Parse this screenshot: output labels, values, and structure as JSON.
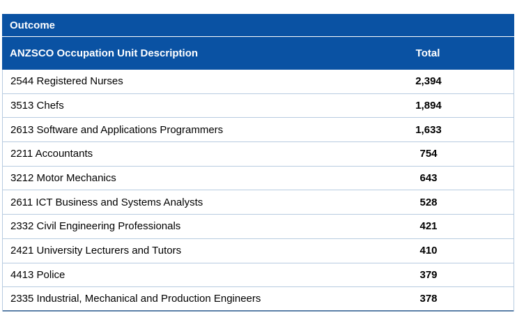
{
  "table": {
    "section_title": "Outcome",
    "columns": {
      "description": "ANZSCO Occupation Unit Description",
      "total": "Total"
    },
    "rows": [
      {
        "description": "2544 Registered Nurses",
        "total": "2,394"
      },
      {
        "description": "3513 Chefs",
        "total": "1,894"
      },
      {
        "description": "2613 Software and Applications Programmers",
        "total": "1,633"
      },
      {
        "description": "2211 Accountants",
        "total": "754"
      },
      {
        "description": "3212 Motor Mechanics",
        "total": "643"
      },
      {
        "description": "2611 ICT Business and Systems Analysts",
        "total": "528"
      },
      {
        "description": "2332 Civil Engineering Professionals",
        "total": "421"
      },
      {
        "description": "2421 University Lecturers and Tutors",
        "total": "410"
      },
      {
        "description": "4413 Police",
        "total": "379"
      },
      {
        "description": "2335 Industrial, Mechanical and Production Engineers",
        "total": "378"
      }
    ]
  },
  "colors": {
    "header_bg": "#0a52a3",
    "header_text": "#ffffff",
    "row_border": "#b7cbe0"
  }
}
